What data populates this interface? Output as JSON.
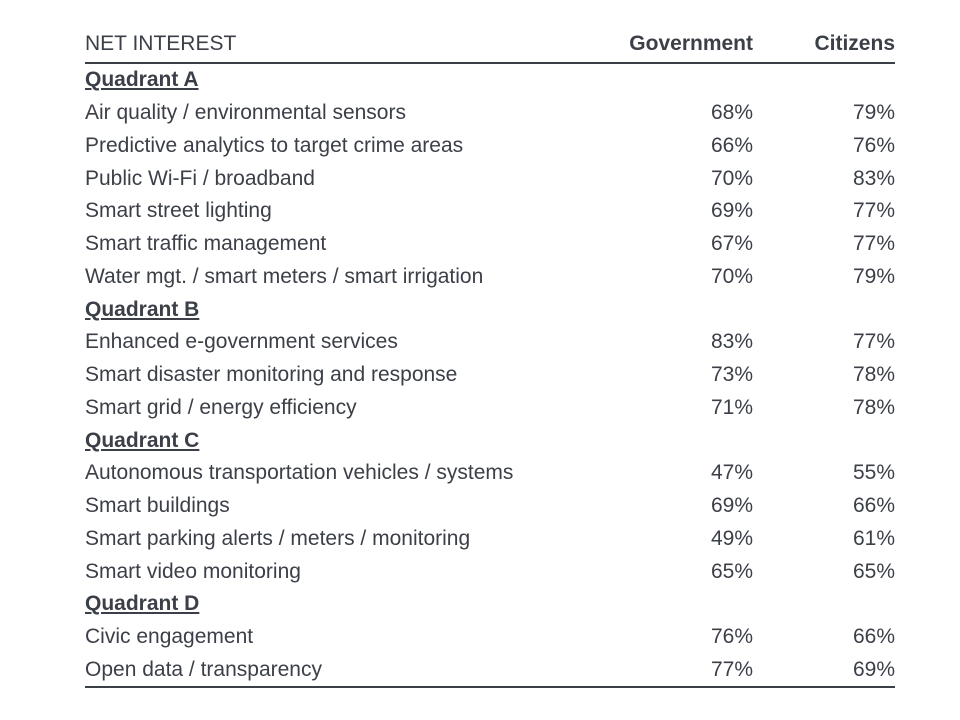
{
  "chart_data": {
    "type": "table",
    "columns": [
      "NET INTEREST",
      "Government",
      "Citizens"
    ],
    "groups": [
      {
        "name": "Quadrant A",
        "rows": [
          {
            "label": "Air quality / environmental sensors",
            "government": "68%",
            "citizens": "79%"
          },
          {
            "label": "Predictive analytics to target crime areas",
            "government": "66%",
            "citizens": "76%"
          },
          {
            "label": "Public Wi-Fi / broadband",
            "government": "70%",
            "citizens": "83%"
          },
          {
            "label": "Smart street lighting",
            "government": "69%",
            "citizens": "77%"
          },
          {
            "label": "Smart traffic management",
            "government": "67%",
            "citizens": "77%"
          },
          {
            "label": "Water mgt. / smart meters / smart irrigation",
            "government": "70%",
            "citizens": "79%"
          }
        ]
      },
      {
        "name": "Quadrant B",
        "rows": [
          {
            "label": "Enhanced e-government services",
            "government": "83%",
            "citizens": "77%"
          },
          {
            "label": "Smart disaster monitoring and response",
            "government": "73%",
            "citizens": "78%"
          },
          {
            "label": "Smart grid / energy efficiency",
            "government": "71%",
            "citizens": "78%"
          }
        ]
      },
      {
        "name": "Quadrant C",
        "rows": [
          {
            "label": "Autonomous transportation vehicles / systems",
            "government": "47%",
            "citizens": "55%"
          },
          {
            "label": "Smart buildings",
            "government": "69%",
            "citizens": "66%"
          },
          {
            "label": "Smart parking alerts / meters / monitoring",
            "government": "49%",
            "citizens": "61%"
          },
          {
            "label": "Smart video monitoring",
            "government": "65%",
            "citizens": "65%"
          }
        ]
      },
      {
        "name": "Quadrant D",
        "rows": [
          {
            "label": "Civic engagement",
            "government": "76%",
            "citizens": "66%"
          },
          {
            "label": "Open data / transparency",
            "government": "77%",
            "citizens": "69%"
          }
        ]
      }
    ]
  }
}
